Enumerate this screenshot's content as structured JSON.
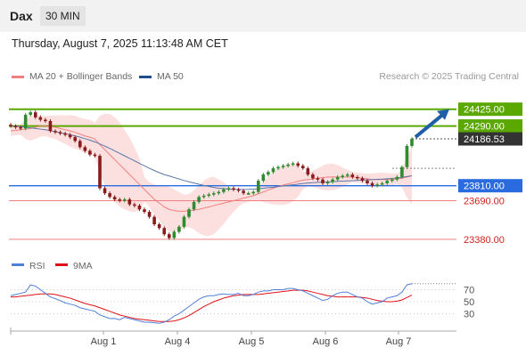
{
  "header": {
    "instrument": "Dax",
    "timeframe": "30 MIN"
  },
  "timestamp": "Thursday, August 7, 2025 11:13:48 AM CET",
  "credit": "Research © 2025 Trading Central",
  "legend": [
    {
      "label": "MA 20 + Bollinger Bands",
      "color": "#f08080"
    },
    {
      "label": "MA 50",
      "color": "#1f4e8c"
    }
  ],
  "colors": {
    "resistance": "#5aa800",
    "support": "#f08080",
    "pivot": "#2a6ce0",
    "last": "#333333",
    "arrow": "#1f5fa8",
    "up": "#2e8b2e",
    "down": "#8b1a1a",
    "band": "#fbd9d9"
  },
  "chart_data": [
    {
      "type": "candlestick",
      "title": "",
      "x_ticks": [
        "Aug 1",
        "Aug 4",
        "Aug 5",
        "Aug 6",
        "Aug 7"
      ],
      "ylim": [
        23300,
        24480
      ],
      "levels": [
        {
          "label": "24425.00",
          "value": 24425,
          "kind": "resistance"
        },
        {
          "label": "24290.00",
          "value": 24290,
          "kind": "resistance"
        },
        {
          "label": "24186.53",
          "value": 24186.53,
          "kind": "last"
        },
        {
          "label": "23810.00",
          "value": 23810,
          "kind": "pivot"
        },
        {
          "label": "23690.00",
          "value": 23690,
          "kind": "support"
        },
        {
          "label": "23380.00",
          "value": 23380,
          "kind": "support"
        }
      ],
      "series": [
        {
          "name": "Price",
          "values": [
            24290,
            24280,
            24270,
            24380,
            24400,
            24360,
            24340,
            24330,
            24250,
            24240,
            24230,
            24220,
            24200,
            24170,
            24120,
            24090,
            24060,
            24050,
            23790,
            23750,
            23720,
            23700,
            23690,
            23700,
            23660,
            23650,
            23620,
            23600,
            23560,
            23500,
            23470,
            23420,
            23390,
            23440,
            23480,
            23560,
            23620,
            23680,
            23720,
            23730,
            23740,
            23750,
            23760,
            23780,
            23790,
            23780,
            23770,
            23750,
            23750,
            23760,
            23850,
            23900,
            23920,
            23950,
            23960,
            23970,
            23980,
            23990,
            23970,
            23950,
            23900,
            23870,
            23860,
            23830,
            23840,
            23860,
            23880,
            23890,
            23900,
            23880,
            23870,
            23850,
            23830,
            23810,
            23820,
            23830,
            23850,
            23860,
            23880,
            23960,
            24130,
            24186.53
          ]
        },
        {
          "name": "MA 20",
          "values": [
            24250,
            24255,
            24260,
            24265,
            24270,
            24280,
            24290,
            24290,
            24285,
            24280,
            24270,
            24260,
            24250,
            24240,
            24225,
            24210,
            24200,
            24185,
            24140,
            24100,
            24060,
            24020,
            23980,
            23940,
            23900,
            23860,
            23820,
            23780,
            23740,
            23700,
            23670,
            23640,
            23620,
            23610,
            23605,
            23605,
            23610,
            23615,
            23620,
            23630,
            23640,
            23650,
            23660,
            23670,
            23680,
            23690,
            23700,
            23710,
            23720,
            23730,
            23745,
            23760,
            23775,
            23790,
            23805,
            23815,
            23825,
            23835,
            23845,
            23855,
            23860,
            23865,
            23870,
            23875,
            23880,
            23880,
            23880,
            23880,
            23880,
            23880,
            23875,
            23870,
            23865,
            23860,
            23860,
            23860,
            23860,
            23860,
            23865,
            23870,
            23880,
            23890
          ]
        },
        {
          "name": "MA 50",
          "values": [
            24290,
            24290,
            24285,
            24280,
            24275,
            24270,
            24265,
            24260,
            24252,
            24244,
            24236,
            24228,
            24220,
            24210,
            24200,
            24188,
            24176,
            24162,
            24146,
            24128,
            24110,
            24090,
            24070,
            24050,
            24030,
            24010,
            23990,
            23970,
            23950,
            23932,
            23915,
            23900,
            23888,
            23876,
            23864,
            23852,
            23842,
            23832,
            23822,
            23812,
            23804,
            23796,
            23790,
            23786,
            23783,
            23781,
            23780,
            23780,
            23781,
            23783,
            23786,
            23790,
            23794,
            23798,
            23803,
            23808,
            23813,
            23818,
            23823,
            23828,
            23832,
            23835,
            23837,
            23839,
            23841,
            23843,
            23845,
            23847,
            23849,
            23851,
            23853,
            23855,
            23857,
            23859,
            23861,
            23863,
            23866,
            23869,
            23873,
            23878,
            23884,
            23890
          ]
        }
      ]
    },
    {
      "type": "line",
      "title": "",
      "y_ticks": [
        "70",
        "50",
        "30"
      ],
      "ylim": [
        10,
        90
      ],
      "series": [
        {
          "name": "RSI",
          "color": "#4f7fd8",
          "values": [
            60,
            62,
            64,
            66,
            78,
            76,
            70,
            64,
            58,
            55,
            52,
            48,
            46,
            44,
            40,
            38,
            36,
            34,
            28,
            25,
            22,
            22,
            20,
            24,
            22,
            20,
            18,
            16,
            16,
            15,
            14,
            16,
            20,
            26,
            30,
            36,
            42,
            48,
            54,
            58,
            60,
            60,
            62,
            63,
            62,
            62,
            64,
            60,
            60,
            62,
            66,
            68,
            68,
            70,
            70,
            70,
            72,
            72,
            70,
            68,
            64,
            60,
            56,
            52,
            54,
            60,
            64,
            66,
            66,
            62,
            58,
            56,
            50,
            46,
            48,
            50,
            56,
            58,
            60,
            66,
            78,
            80
          ]
        },
        {
          "name": "9MA",
          "color": "#e0101a",
          "values": [
            58,
            58,
            59,
            60,
            61,
            62,
            63,
            63,
            63,
            62,
            60,
            58,
            56,
            53,
            50,
            47,
            45,
            43,
            40,
            37,
            34,
            31,
            28,
            26,
            24,
            22,
            21,
            20,
            19,
            18,
            17,
            17,
            17,
            18,
            20,
            23,
            27,
            32,
            37,
            42,
            46,
            50,
            53,
            56,
            58,
            60,
            61,
            62,
            62,
            62,
            62,
            63,
            64,
            65,
            66,
            67,
            68,
            69,
            69,
            69,
            68,
            66,
            64,
            62,
            60,
            59,
            58,
            58,
            58,
            58,
            58,
            57,
            56,
            54,
            52,
            51,
            50,
            50,
            51,
            53,
            57,
            61
          ]
        }
      ]
    }
  ]
}
